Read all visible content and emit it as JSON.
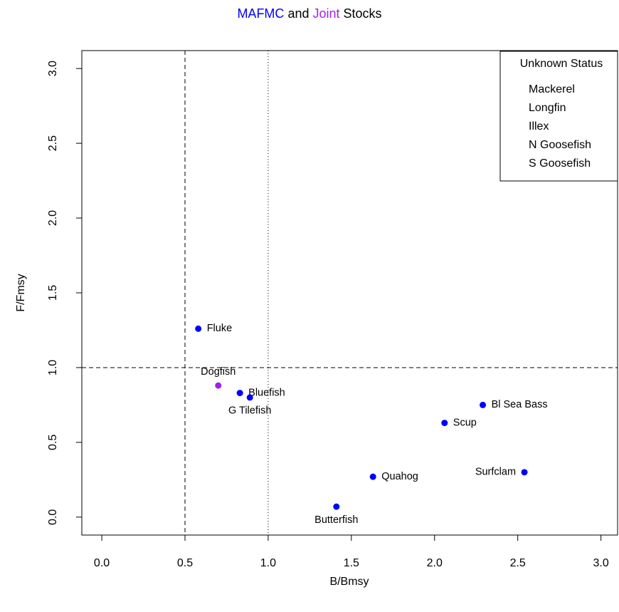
{
  "chart_data": {
    "type": "scatter",
    "title_parts": [
      {
        "text": "MAFMC",
        "color": "#0000ff"
      },
      {
        "text": "and",
        "color": "#000000"
      },
      {
        "text": "Joint",
        "color": "#a020f0"
      },
      {
        "text": "Stocks",
        "color": "#000000"
      }
    ],
    "x_label": "B/Bmsy",
    "y_label": "F/Fmsy",
    "labels": [
      "Fluke",
      "Dogfish",
      "Bluefish",
      "G Tilefish",
      "Bl Sea Bass",
      "Scup",
      "Surfclam",
      "Quahog",
      "Butterfish"
    ],
    "x": [
      0.58,
      0.7,
      0.83,
      0.89,
      2.29,
      2.06,
      2.54,
      1.63,
      1.41
    ],
    "y": [
      1.26,
      0.88,
      0.83,
      0.8,
      0.75,
      0.63,
      0.3,
      0.27,
      0.07
    ],
    "colors": [
      "#0000ff",
      "#a020f0",
      "#0000ff",
      "#0000ff",
      "#0000ff",
      "#0000ff",
      "#0000ff",
      "#0000ff",
      "#0000ff"
    ],
    "label_positions": [
      "right",
      "above",
      "right",
      "below",
      "right",
      "right",
      "left",
      "right",
      "below"
    ],
    "xlim": [
      -0.12,
      3.1
    ],
    "ylim": [
      -0.12,
      3.12
    ],
    "xticks": [
      {
        "value": 0,
        "label": "0.0"
      },
      {
        "value": 0.5,
        "label": "0.5"
      },
      {
        "value": 1,
        "label": "1.0"
      },
      {
        "value": 1.5,
        "label": "1.5"
      },
      {
        "value": 2,
        "label": "2.0"
      },
      {
        "value": 2.5,
        "label": "2.5"
      },
      {
        "value": 3,
        "label": "3.0"
      }
    ],
    "yticks": [
      {
        "value": 0,
        "label": "0.0"
      },
      {
        "value": 0.5,
        "label": "0.5"
      },
      {
        "value": 1,
        "label": "1.0"
      },
      {
        "value": 1.5,
        "label": "1.5"
      },
      {
        "value": 2,
        "label": "2.0"
      },
      {
        "value": 2.5,
        "label": "2.5"
      },
      {
        "value": 3,
        "label": "3.0"
      }
    ],
    "reference_lines": [
      {
        "axis": "x",
        "value": 0.5,
        "style": "dashed"
      },
      {
        "axis": "x",
        "value": 1,
        "style": "dotted"
      },
      {
        "axis": "y",
        "value": 1,
        "style": "dashed"
      }
    ],
    "legend": {
      "title": "Unknown Status",
      "entries": [
        {
          "text": "Mackerel",
          "color": "#0000ff"
        },
        {
          "text": "Longfin",
          "color": "#0000ff"
        },
        {
          "text": "Illex",
          "color": "#0000ff"
        },
        {
          "text": "N Goosefish",
          "color": "#a020f0"
        },
        {
          "text": "S Goosefish",
          "color": "#a020f0"
        }
      ]
    }
  }
}
